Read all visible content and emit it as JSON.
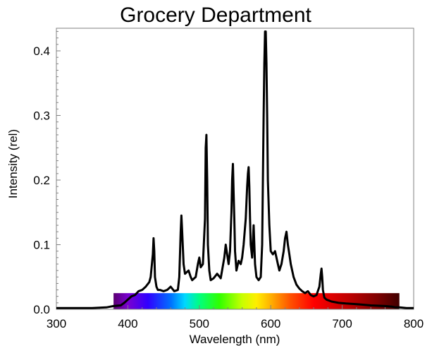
{
  "chart_data": {
    "type": "line",
    "title": "Grocery Department",
    "xlabel": "Wavelength (nm)",
    "ylabel": "Intensity (rel)",
    "xlim": [
      300,
      800
    ],
    "ylim": [
      0,
      0.43
    ],
    "x_ticks": [
      "300",
      "400",
      "500",
      "600",
      "700",
      "800"
    ],
    "y_ticks": [
      "0.0",
      "0.1",
      "0.2",
      "0.3",
      "0.4"
    ],
    "grid": false,
    "legend": "none",
    "line_color": "#000000",
    "spectrum_band": {
      "x_range": [
        380,
        780
      ],
      "height": 0.025
    },
    "series": [
      {
        "x": [
          300,
          350,
          370,
          380,
          390,
          395,
          400,
          405,
          410,
          415,
          420,
          425,
          430,
          432,
          435,
          436,
          437,
          438,
          440,
          442,
          445,
          450,
          455,
          460,
          465,
          470,
          472,
          474,
          475,
          476,
          478,
          480,
          485,
          488,
          490,
          495,
          498,
          500,
          502,
          505,
          508,
          509,
          510,
          511,
          512,
          514,
          516,
          520,
          525,
          530,
          535,
          537,
          539,
          541,
          543,
          545,
          546,
          547,
          548,
          549,
          550,
          552,
          555,
          558,
          560,
          562,
          565,
          567,
          568,
          569,
          570,
          571,
          572,
          574,
          576,
          578,
          580,
          583,
          586,
          588,
          590,
          591,
          592,
          593,
          594,
          595,
          596,
          598,
          600,
          603,
          606,
          608,
          610,
          612,
          615,
          618,
          620,
          622,
          624,
          626,
          628,
          632,
          636,
          640,
          644,
          648,
          652,
          656,
          660,
          664,
          668,
          670,
          671,
          672,
          673,
          675,
          678,
          685,
          695,
          705,
          720,
          740,
          760,
          770,
          775,
          780,
          790,
          800
        ],
        "y": [
          0.002,
          0.002,
          0.003,
          0.005,
          0.006,
          0.01,
          0.015,
          0.02,
          0.022,
          0.028,
          0.03,
          0.035,
          0.042,
          0.05,
          0.085,
          0.11,
          0.09,
          0.05,
          0.035,
          0.03,
          0.03,
          0.028,
          0.03,
          0.035,
          0.028,
          0.03,
          0.05,
          0.12,
          0.145,
          0.12,
          0.07,
          0.055,
          0.06,
          0.05,
          0.045,
          0.05,
          0.07,
          0.08,
          0.065,
          0.07,
          0.14,
          0.25,
          0.27,
          0.2,
          0.1,
          0.06,
          0.045,
          0.048,
          0.055,
          0.048,
          0.08,
          0.1,
          0.085,
          0.07,
          0.09,
          0.15,
          0.2,
          0.225,
          0.18,
          0.14,
          0.09,
          0.06,
          0.075,
          0.07,
          0.08,
          0.1,
          0.14,
          0.19,
          0.21,
          0.22,
          0.19,
          0.14,
          0.1,
          0.08,
          0.13,
          0.07,
          0.05,
          0.045,
          0.05,
          0.1,
          0.3,
          0.38,
          0.43,
          0.43,
          0.38,
          0.3,
          0.2,
          0.13,
          0.09,
          0.085,
          0.09,
          0.08,
          0.07,
          0.06,
          0.07,
          0.09,
          0.11,
          0.12,
          0.1,
          0.085,
          0.07,
          0.05,
          0.038,
          0.032,
          0.028,
          0.025,
          0.028,
          0.022,
          0.02,
          0.022,
          0.035,
          0.055,
          0.063,
          0.05,
          0.03,
          0.018,
          0.015,
          0.012,
          0.01,
          0.009,
          0.008,
          0.006,
          0.005,
          0.004,
          0.003,
          0.003,
          0.002,
          0.002
        ]
      }
    ]
  }
}
